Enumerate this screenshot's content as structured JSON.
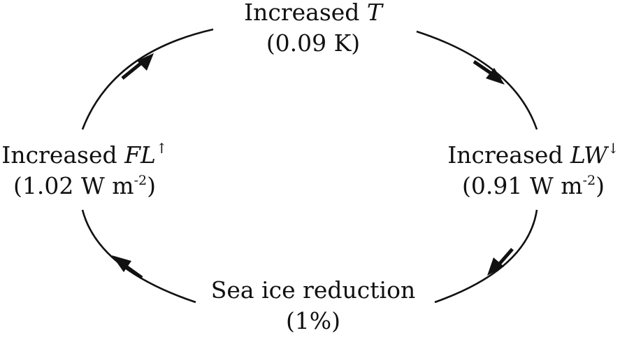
{
  "nodes": {
    "top": {
      "prefix": "Increased ",
      "var": "T",
      "value": "(0.09 K)"
    },
    "right": {
      "prefix": "Increased ",
      "var": "LW",
      "arrow": "↓",
      "value_pre": "(0.91 W m",
      "value_exp": "-2",
      "value_post": ")"
    },
    "bottom": {
      "label": "Sea ice reduction",
      "value": "(1%)"
    },
    "left": {
      "prefix": "Increased ",
      "var": "FL",
      "arrow": "↑",
      "value_pre": "(1.02 W m",
      "value_exp": "-2",
      "value_post": ")"
    }
  },
  "colors": {
    "stroke": "#111111",
    "background": "#ffffff"
  }
}
